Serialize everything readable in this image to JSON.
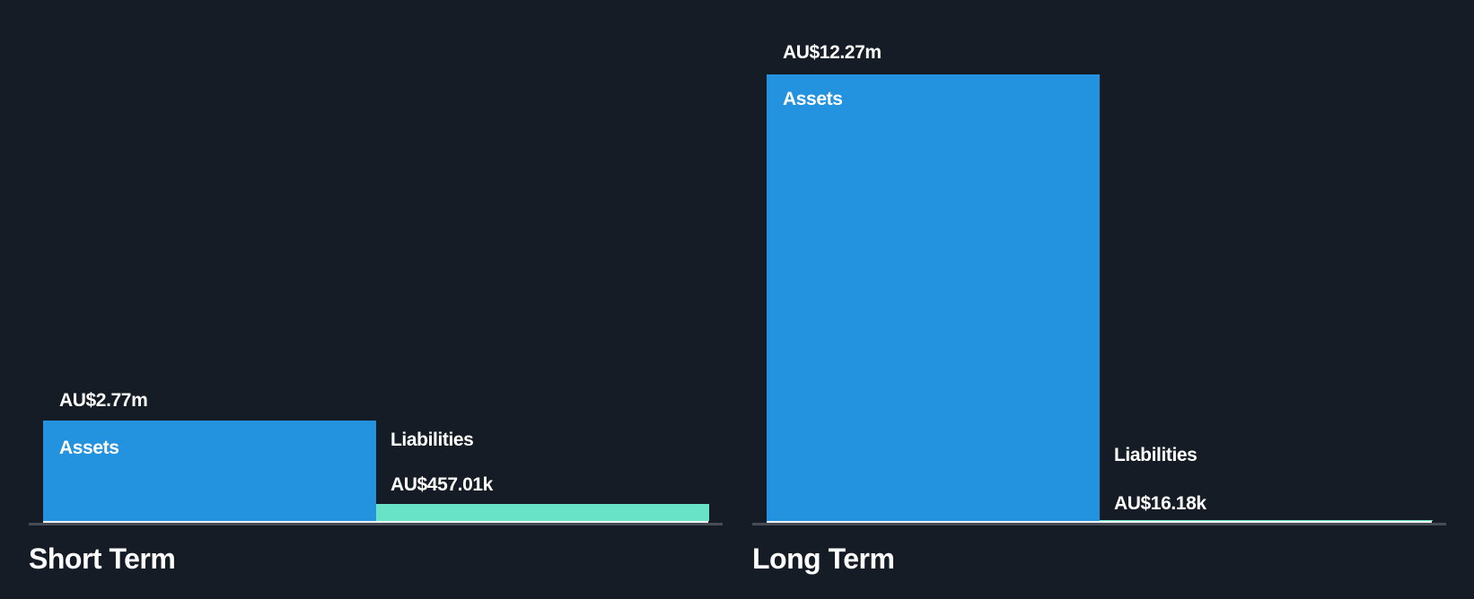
{
  "colors": {
    "background": "#161c25",
    "assets_bar": "#2493df",
    "liabilities_bar": "#69e3c8",
    "axis_line": "#f2f3f5",
    "baseline": "#464b54",
    "text": "#ffffff"
  },
  "chart_data": [
    {
      "type": "bar",
      "title": "Short Term",
      "categories": [
        "Assets",
        "Liabilities"
      ],
      "values": [
        2770000,
        457010
      ],
      "value_labels": [
        "AU$2.77m",
        "AU$457.01k"
      ],
      "ylim": [
        0,
        12270000
      ],
      "currency": "AU$",
      "grid": false,
      "legend_position": "none",
      "label_placement": "assets label inside bar top-left; liabilities labels above bar"
    },
    {
      "type": "bar",
      "title": "Long Term",
      "categories": [
        "Assets",
        "Liabilities"
      ],
      "values": [
        12270000,
        16180
      ],
      "value_labels": [
        "AU$12.27m",
        "AU$16.18k"
      ],
      "ylim": [
        0,
        12270000
      ],
      "currency": "AU$",
      "grid": false,
      "legend_position": "none",
      "label_placement": "assets label inside bar top-left; liabilities labels above baseline"
    }
  ]
}
